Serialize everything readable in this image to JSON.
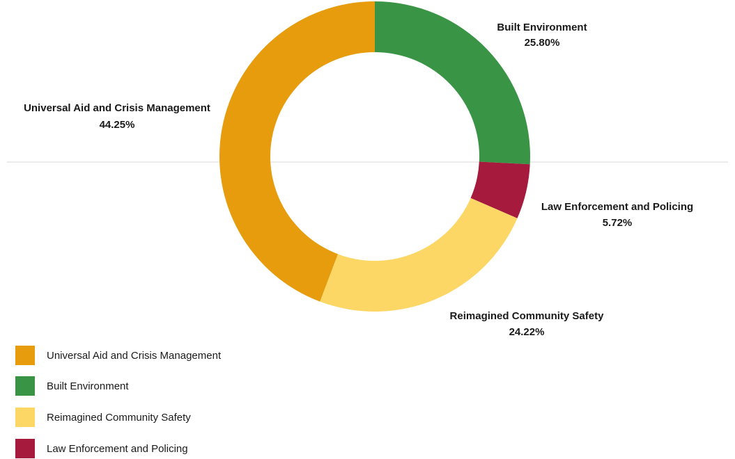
{
  "chart_data": {
    "type": "pie",
    "donut": true,
    "title": "",
    "categories": [
      "Built Environment",
      "Law Enforcement and Policing",
      "Reimagined Community Safety",
      "Universal Aid and Crisis Management"
    ],
    "values": [
      25.8,
      5.72,
      24.22,
      44.25
    ],
    "value_labels": [
      "25.80%",
      "5.72%",
      "24.22%",
      "44.25%"
    ],
    "colors": {
      "Built Environment": "#3a9445",
      "Law Enforcement and Policing": "#a51a3d",
      "Reimagined Community Safety": "#fcd766",
      "Universal Aid and Crisis Management": "#e69c0c"
    },
    "legend": {
      "placement": "bottom-left",
      "entries": [
        "Universal Aid and Crisis Management",
        "Built Environment",
        "Reimagined Community Safety",
        "Law Enforcement and Policing"
      ]
    }
  }
}
